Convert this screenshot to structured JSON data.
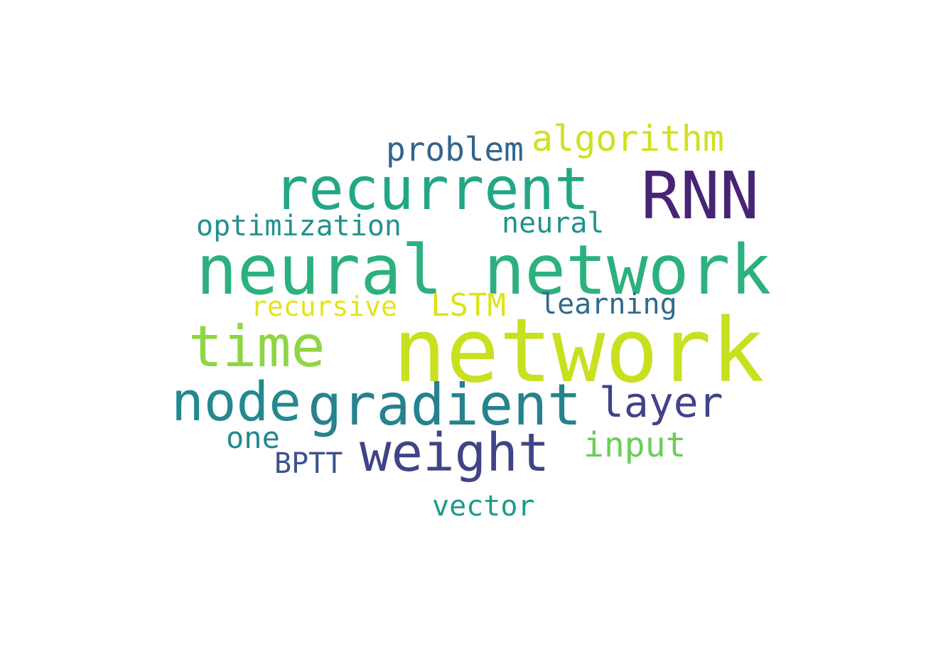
{
  "background": "#ffffff",
  "words": [
    {
      "text": "network",
      "color": "#c8e020"
    },
    {
      "text": "neural network",
      "color": "#2cb17e"
    },
    {
      "text": "recurrent",
      "color": "#22a785"
    },
    {
      "text": "RNN",
      "color": "#482475"
    },
    {
      "text": "time",
      "color": "#8ed645"
    },
    {
      "text": "gradient",
      "color": "#26828e"
    },
    {
      "text": "node",
      "color": "#23898e"
    },
    {
      "text": "weight",
      "color": "#404387"
    },
    {
      "text": "layer",
      "color": "#414287"
    },
    {
      "text": "algorithm",
      "color": "#d0e11c"
    },
    {
      "text": "problem",
      "color": "#33638d"
    },
    {
      "text": "optimization",
      "color": "#21918c"
    },
    {
      "text": "neural",
      "color": "#20928c"
    },
    {
      "text": "recursive",
      "color": "#e2e418"
    },
    {
      "text": "LSTM",
      "color": "#dde318"
    },
    {
      "text": "learning",
      "color": "#31688e"
    },
    {
      "text": "one",
      "color": "#238a8d"
    },
    {
      "text": "input",
      "color": "#6ccd5a"
    },
    {
      "text": "BPTT",
      "color": "#3b528b"
    },
    {
      "text": "vector",
      "color": "#1f9a8a"
    }
  ]
}
